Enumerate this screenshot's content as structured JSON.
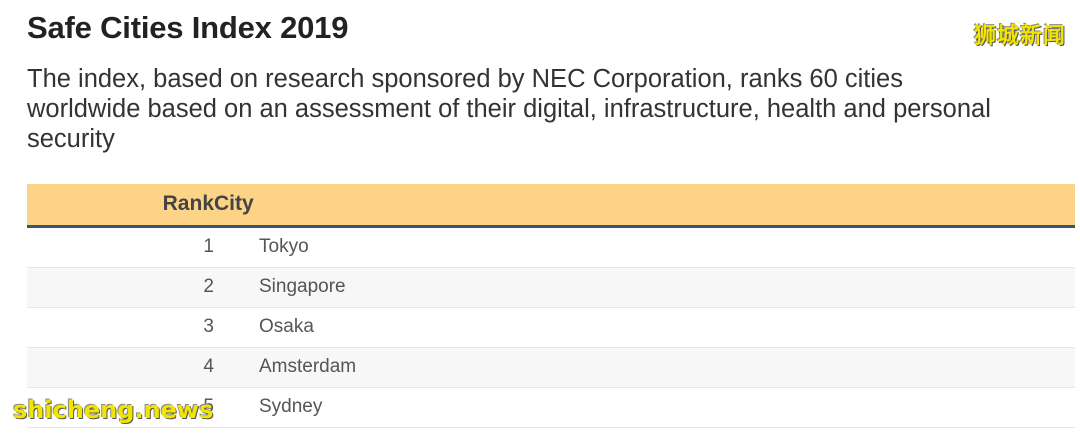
{
  "title": "Safe Cities Index 2019",
  "subtitle": "The index, based on research sponsored by NEC Corporation, ranks 60 cities worldwide based on an assessment of their digital, infrastructure, health and personal security",
  "watermarks": {
    "top_right": "狮城新闻",
    "bottom_left": "shicheng.news"
  },
  "colors": {
    "header_background": "#fdd387",
    "header_rule": "#3c5568",
    "watermark": "#f2e500"
  },
  "chart_data": {
    "type": "table",
    "columns": [
      "Rank",
      "City"
    ],
    "rows": [
      {
        "rank": "1",
        "city": "Tokyo"
      },
      {
        "rank": "2",
        "city": "Singapore"
      },
      {
        "rank": "3",
        "city": "Osaka"
      },
      {
        "rank": "4",
        "city": "Amsterdam"
      },
      {
        "rank": "5",
        "city": "Sydney"
      }
    ]
  }
}
